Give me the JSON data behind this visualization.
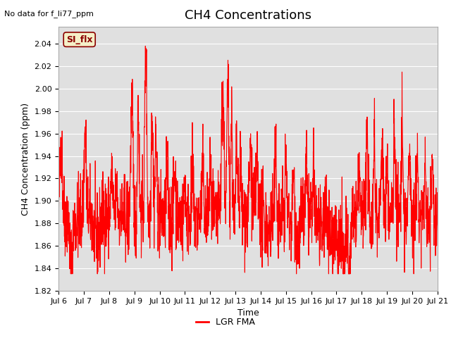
{
  "title": "CH4 Concentrations",
  "xlabel": "Time",
  "ylabel": "CH4 Concentration (ppm)",
  "top_left_text": "No data for f_li77_ppm",
  "legend_box_label": "SI_flx",
  "legend_box_facecolor": "#f5f0c8",
  "legend_box_edgecolor": "#8b0000",
  "line_color": "#ff0000",
  "line_label": "LGR FMA",
  "ylim": [
    1.82,
    2.055
  ],
  "yticks": [
    1.82,
    1.84,
    1.86,
    1.88,
    1.9,
    1.92,
    1.94,
    1.96,
    1.98,
    2.0,
    2.02,
    2.04
  ],
  "xtick_labels": [
    "Jul 6",
    "Jul 7",
    "Jul 8",
    "Jul 9",
    "Jul 10",
    "Jul 11",
    "Jul 12",
    "Jul 13",
    "Jul 14",
    "Jul 15",
    "Jul 16",
    "Jul 17",
    "Jul 18",
    "Jul 19",
    "Jul 20",
    "Jul 21"
  ],
  "plot_bg_color": "#e0e0e0",
  "fig_bg_color": "#ffffff",
  "grid_color": "#ffffff",
  "title_fontsize": 13,
  "axis_label_fontsize": 9,
  "tick_fontsize": 8,
  "line_width": 0.8,
  "seed": 42
}
